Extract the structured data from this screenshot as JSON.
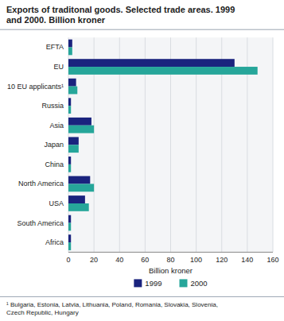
{
  "chart_data": {
    "type": "bar",
    "orientation": "horizontal",
    "title": "Exports of traditonal goods. Selected trade areas. 1999\nand 2000. Billion kroner",
    "categories": [
      "EFTA",
      "EU",
      "10 EU applicants¹",
      "Russia",
      "Asia",
      "Japan",
      "China",
      "North America",
      "USA",
      "South America",
      "Africa"
    ],
    "series": [
      {
        "name": "1999",
        "color": "#1a237e",
        "values": [
          3,
          130,
          6,
          2,
          18,
          8,
          2,
          17,
          13,
          2,
          2
        ]
      },
      {
        "name": "2000",
        "color": "#26a69a",
        "values": [
          3,
          148,
          7,
          2,
          20,
          8,
          2,
          20,
          16,
          2,
          2
        ]
      }
    ],
    "xlabel": "Billion kroner",
    "xlim": [
      0,
      160
    ],
    "xticks": [
      0,
      20,
      40,
      60,
      80,
      100,
      120,
      140,
      160
    ],
    "grid": true,
    "legend": "bottom",
    "footnote": "¹ Bulgaria, Estonia, Latvia, Lithuania, Poland, Romania, Slovakia, Slovenia,\nCzech Republic, Hungary"
  }
}
